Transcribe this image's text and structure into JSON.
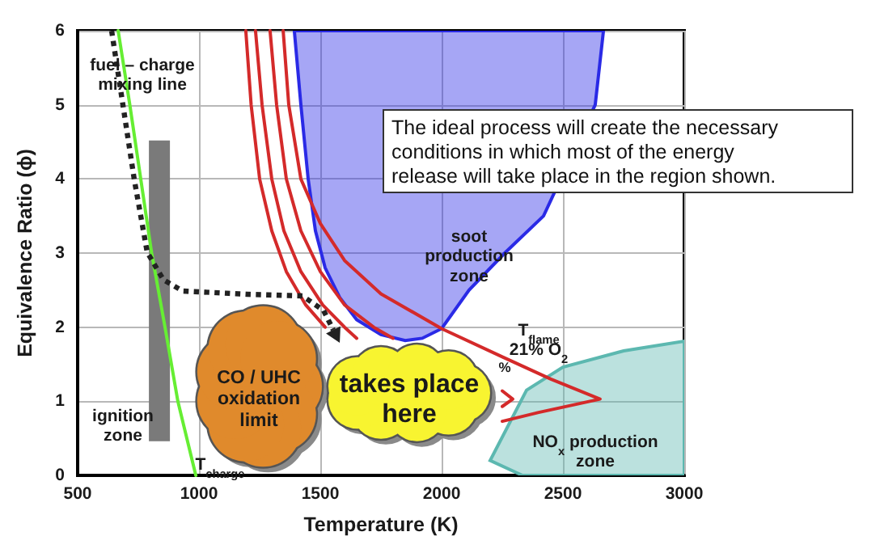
{
  "chart_data": {
    "type": "line",
    "xlabel": "Temperature (K)",
    "ylabel": "Equivalence Ratio (ϕ)",
    "xlim": [
      500,
      3000
    ],
    "xticks": [
      500,
      1000,
      1500,
      2000,
      2500,
      3000
    ],
    "ylim": [
      0,
      6
    ],
    "yticks": [
      0,
      1,
      2,
      3,
      4,
      5,
      6
    ],
    "grid": true,
    "series": [
      {
        "type": "area",
        "color": "#2a2ae6",
        "x": [
          1393,
          1420,
          1450,
          1480,
          1520,
          1580,
          1650,
          1750,
          1850,
          1920,
          2000,
          2113,
          2260,
          2420,
          2560,
          2600,
          2633,
          2667
        ],
        "values": [
          6,
          5,
          4,
          3.3,
          2.8,
          2.4,
          2.1,
          1.9,
          1.82,
          1.85,
          1.98,
          2.5,
          3,
          3.5,
          null,
          null,
          5,
          6
        ]
      },
      {
        "type": "area",
        "color": "#5cb8b0",
        "x": [
          2333,
          2200,
          2350,
          2500,
          2750,
          3000,
          3000
        ],
        "values": [
          0,
          0.2,
          1.15,
          1.46,
          1.68,
          1.81,
          0
        ]
      },
      {
        "type": "bar",
        "color": "#7a7a7a",
        "x": [
          837
        ],
        "base": [
          0.46
        ],
        "values": [
          4.06
        ]
      },
      {
        "color": "#d42a2a",
        "x": [
          1347,
          1370,
          1420,
          1500,
          1600,
          1750,
          2000,
          2250,
          2450,
          2653,
          2400,
          2250
        ],
        "values": [
          6,
          5,
          4,
          3.4,
          2.9,
          2.45,
          1.98,
          1.6,
          1.3,
          1.03,
          0.85,
          0.73
        ]
      },
      {
        "color": "#d42a2a",
        "x": [
          1293,
          1320,
          1360,
          1420,
          1500,
          1600,
          1720,
          1800,
          null,
          2250,
          2293,
          2250
        ],
        "values": [
          6,
          5,
          4,
          3.3,
          2.75,
          2.3,
          2,
          1.85,
          null,
          1.14,
          1.03,
          0.93
        ]
      },
      {
        "color": "#d42a2a",
        "x": [
          1233,
          1260,
          1300,
          1350,
          1420,
          1510,
          1600,
          1650
        ],
        "values": [
          6,
          5,
          4,
          3.3,
          2.75,
          2.3,
          2,
          1.85
        ]
      },
      {
        "color": "#d42a2a",
        "x": [
          1193,
          1215,
          1250,
          1300,
          1360,
          1440,
          1520
        ],
        "values": [
          6,
          5,
          4,
          3.3,
          2.75,
          2.3,
          2
        ]
      },
      {
        "color": "#66ee33",
        "x": [
          667,
          715,
          760,
          805,
          860,
          913,
          987
        ],
        "values": [
          6,
          5,
          4,
          3,
          2,
          1,
          0
        ]
      }
    ],
    "annotations": [
      "fuel – charge\nmixing line",
      "ignition\nzone",
      "T$_{charge}$",
      "CO / UHC\noxidation\nlimit",
      "takes place\nhere",
      "soot\nproduction\nzone",
      "T$_{flame}$\n21% O$_{2}$",
      "%",
      "NO$_{x}$ production\nzone",
      "The ideal process will create the necessary\nconditions in which most of the energy\nrelease will take place in the region shown."
    ]
  }
}
